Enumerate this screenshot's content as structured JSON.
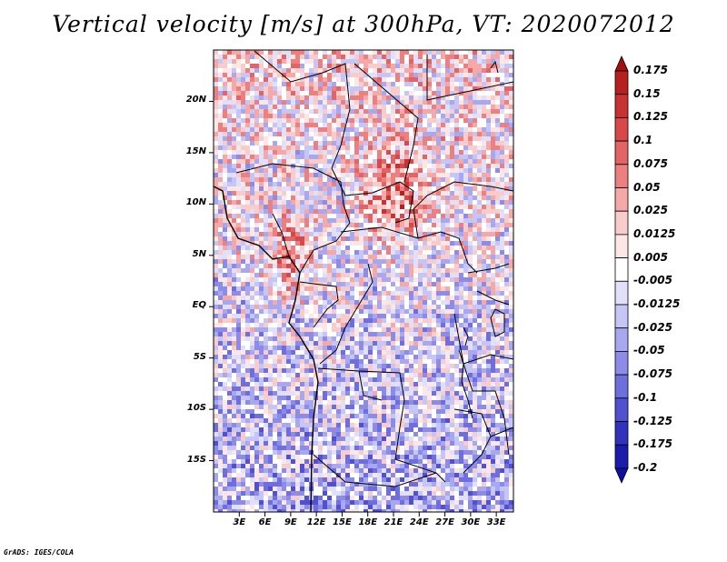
{
  "title": "Vertical velocity [m/s] at 300hPa, VT: 2020072012",
  "credit": "GrADS: IGES/COLA",
  "map": {
    "region": "Central Africa",
    "lon_range": [
      0,
      35
    ],
    "lat_range": [
      -20,
      25
    ],
    "lat_ticks": [
      "20N",
      "15N",
      "10N",
      "5N",
      "EQ",
      "5S",
      "10S",
      "15S"
    ],
    "lon_ticks": [
      "3E",
      "6E",
      "9E",
      "12E",
      "15E",
      "18E",
      "21E",
      "24E",
      "27E",
      "30E",
      "33E"
    ],
    "coastline_color": "#000000"
  },
  "colorbar": {
    "labels": [
      "0.175",
      "0.15",
      "0.125",
      "0.1",
      "0.075",
      "0.05",
      "0.025",
      "0.0125",
      "0.005",
      "-0.005",
      "-0.0125",
      "-0.025",
      "-0.05",
      "-0.075",
      "-0.1",
      "-0.125",
      "-0.175",
      "-0.2"
    ],
    "colors": [
      "#a01010",
      "#b82020",
      "#c83232",
      "#d84848",
      "#e26464",
      "#ec8080",
      "#f4a8a8",
      "#f9cccc",
      "#fde6e6",
      "#ffffff",
      "#e0e0fb",
      "#c6c6f6",
      "#a8a8f0",
      "#8c8ce8",
      "#6e6ede",
      "#5050d0",
      "#3232be",
      "#1c1cac",
      "#1010a0"
    ]
  }
}
